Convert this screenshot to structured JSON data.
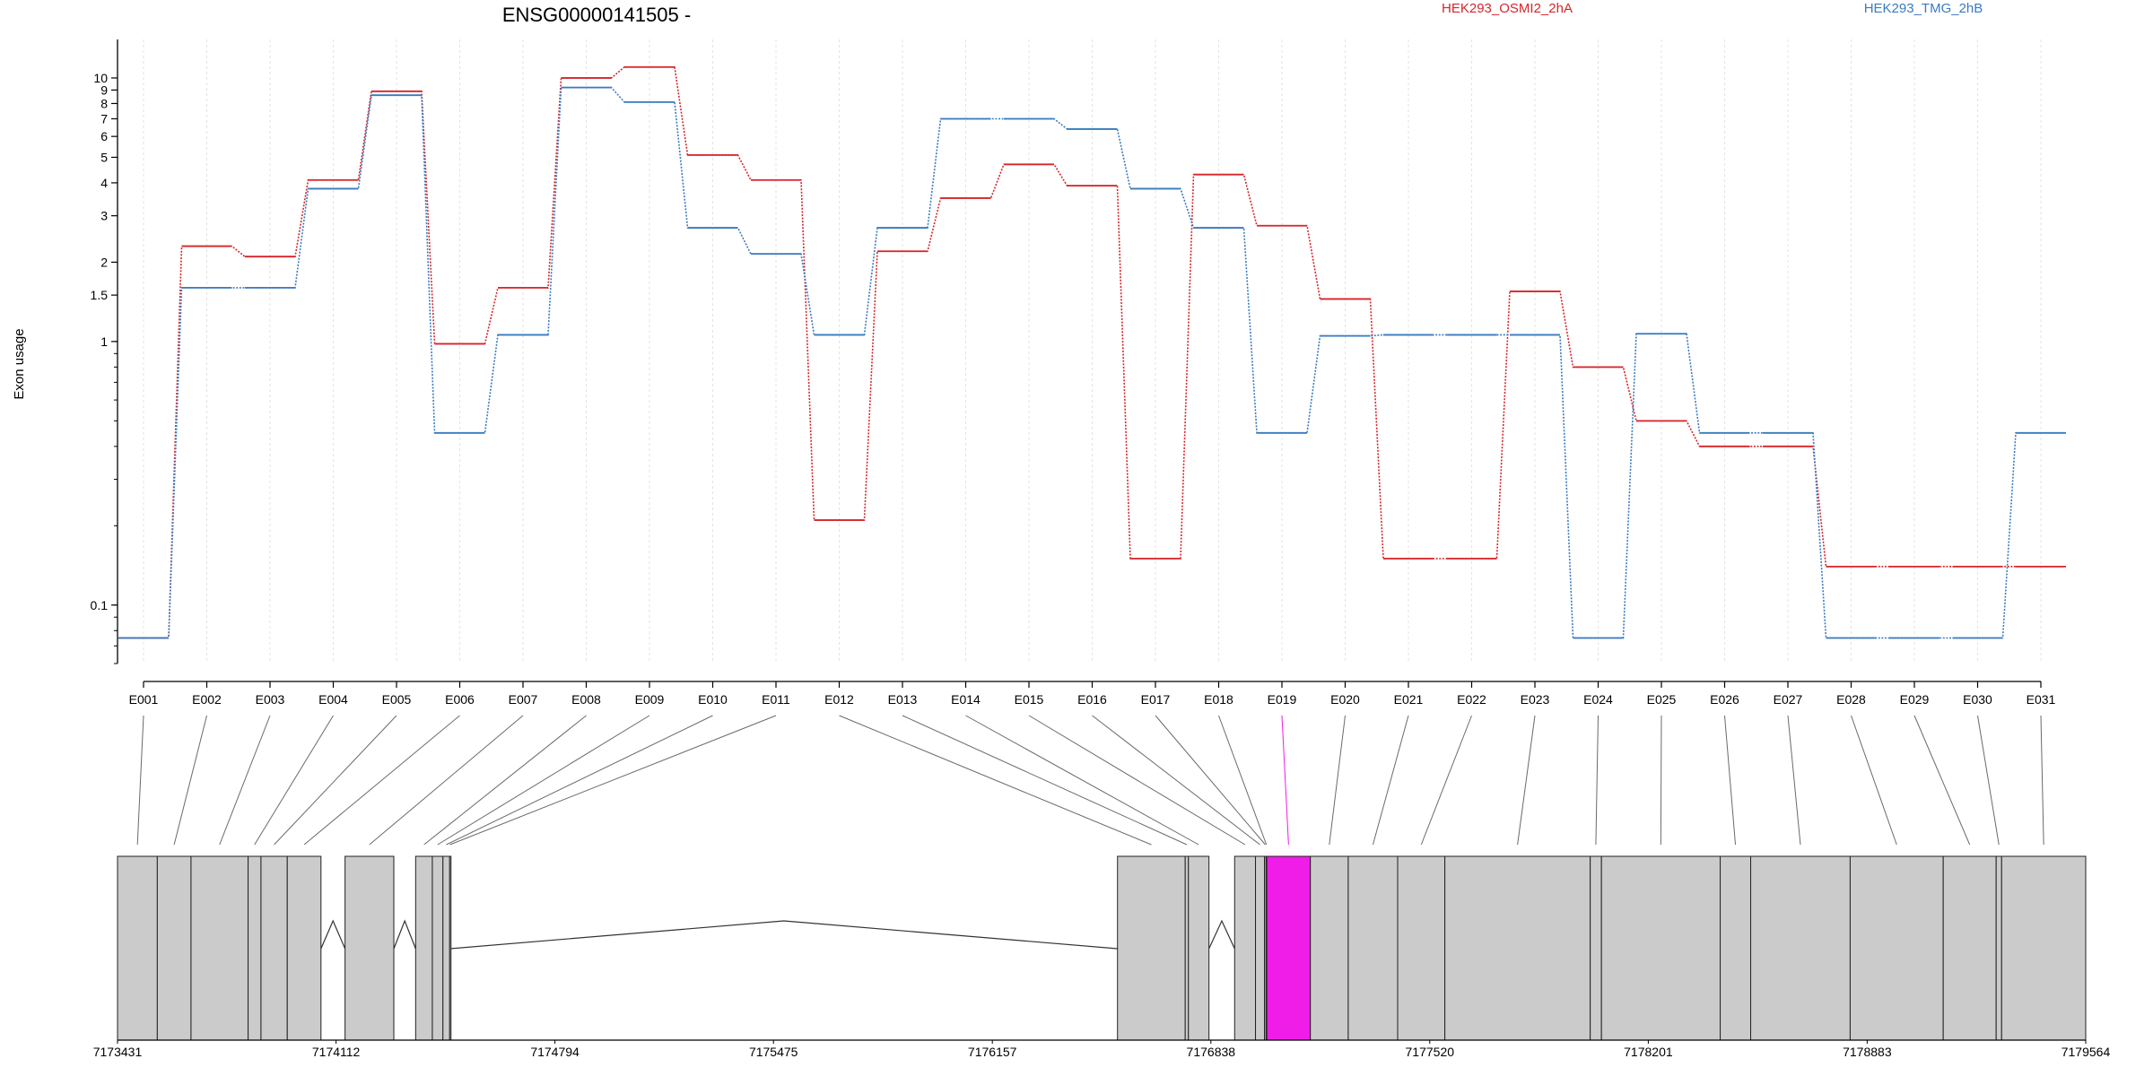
{
  "chart_data": [
    {
      "type": "line",
      "title": "ENSG00000141505 -",
      "ylabel": "Exon usage",
      "y_scale": "log",
      "ylim": [
        0.06,
        14
      ],
      "y_ticks": [
        0.1,
        1,
        1.5,
        2,
        3,
        4,
        5,
        6,
        7,
        8,
        9,
        10
      ],
      "y_tick_labels": [
        "0.1",
        "1",
        "1.5",
        "2",
        "3",
        "4",
        "5",
        "6",
        "7",
        "8",
        "9",
        "10"
      ],
      "categories": [
        "E001",
        "E002",
        "E003",
        "E004",
        "E005",
        "E006",
        "E007",
        "E008",
        "E009",
        "E010",
        "E011",
        "E012",
        "E013",
        "E014",
        "E015",
        "E016",
        "E017",
        "E018",
        "E019",
        "E020",
        "E021",
        "E022",
        "E023",
        "E024",
        "E025",
        "E026",
        "E027",
        "E028",
        "E029",
        "E030",
        "E031"
      ],
      "highlight_exon": "E019",
      "grid": "vertical",
      "legend_position": "top",
      "series": [
        {
          "name": "HEK293_OSMI2_2hA",
          "color": "#d6262b",
          "values": [
            0.075,
            2.3,
            2.1,
            4.1,
            8.9,
            0.98,
            1.6,
            10,
            11,
            5.1,
            4.1,
            0.21,
            2.2,
            3.5,
            4.7,
            3.9,
            0.15,
            4.3,
            2.75,
            1.45,
            0.15,
            0.15,
            1.55,
            0.8,
            0.5,
            0.4,
            0.4,
            0.14,
            0.14,
            0.14,
            0.14
          ]
        },
        {
          "name": "HEK293_TMG_2hB",
          "color": "#3a7bbf",
          "values": [
            0.075,
            1.6,
            1.6,
            3.8,
            8.6,
            0.45,
            1.06,
            9.2,
            8.1,
            2.7,
            2.15,
            1.06,
            2.7,
            7,
            7,
            6.4,
            3.8,
            2.7,
            0.45,
            1.05,
            1.06,
            1.06,
            1.06,
            0.075,
            1.07,
            0.45,
            0.45,
            0.075,
            0.075,
            0.075,
            0.45
          ]
        }
      ]
    },
    {
      "type": "diagram",
      "x_ticks": [
        7173431,
        7174112,
        7174794,
        7175475,
        7176157,
        7176838,
        7177520,
        7178201,
        7178883,
        7179564
      ],
      "xlim": [
        7173431,
        7179564
      ],
      "highlight_color": "#f01ce8",
      "exons": [
        {
          "id": "E001",
          "start": 7173431,
          "end": 7173555
        },
        {
          "id": "E002",
          "start": 7173555,
          "end": 7173660
        },
        {
          "id": "E003",
          "start": 7173660,
          "end": 7173838
        },
        {
          "id": "E004",
          "start": 7173838,
          "end": 7173878
        },
        {
          "id": "E005",
          "start": 7173878,
          "end": 7173960
        },
        {
          "id": "E006",
          "start": 7173960,
          "end": 7174065
        },
        {
          "id": "E007",
          "start": 7174140,
          "end": 7174292
        },
        {
          "id": "E008",
          "start": 7174360,
          "end": 7174412
        },
        {
          "id": "E009",
          "start": 7174412,
          "end": 7174445
        },
        {
          "id": "E010",
          "start": 7174445,
          "end": 7174466
        },
        {
          "id": "E011",
          "start": 7174466,
          "end": 7174468
        },
        {
          "id": "E012",
          "start": 7176547,
          "end": 7176758
        },
        {
          "id": "E013",
          "start": 7176758,
          "end": 7176768
        },
        {
          "id": "E014",
          "start": 7176768,
          "end": 7176832
        },
        {
          "id": "E015",
          "start": 7176912,
          "end": 7176977
        },
        {
          "id": "E016",
          "start": 7176977,
          "end": 7177005
        },
        {
          "id": "E017",
          "start": 7177005,
          "end": 7177010
        },
        {
          "id": "E018",
          "start": 7177010,
          "end": 7177012
        },
        {
          "id": "E019",
          "start": 7177012,
          "end": 7177148
        },
        {
          "id": "E020",
          "start": 7177148,
          "end": 7177266
        },
        {
          "id": "E021",
          "start": 7177266,
          "end": 7177420
        },
        {
          "id": "E022",
          "start": 7177420,
          "end": 7177567
        },
        {
          "id": "E023",
          "start": 7177567,
          "end": 7178020
        },
        {
          "id": "E024",
          "start": 7178020,
          "end": 7178055
        },
        {
          "id": "E025",
          "start": 7178055,
          "end": 7178425
        },
        {
          "id": "E026",
          "start": 7178425,
          "end": 7178520
        },
        {
          "id": "E027",
          "start": 7178520,
          "end": 7178830
        },
        {
          "id": "E028",
          "start": 7178830,
          "end": 7179120
        },
        {
          "id": "E029",
          "start": 7179120,
          "end": 7179285
        },
        {
          "id": "E030",
          "start": 7179285,
          "end": 7179302
        },
        {
          "id": "E031",
          "start": 7179302,
          "end": 7179564
        }
      ],
      "introns": [
        {
          "start": 7174065,
          "end": 7174140
        },
        {
          "start": 7174292,
          "end": 7174360
        },
        {
          "start": 7174468,
          "end": 7176547
        },
        {
          "start": 7176832,
          "end": 7176912
        }
      ]
    }
  ]
}
